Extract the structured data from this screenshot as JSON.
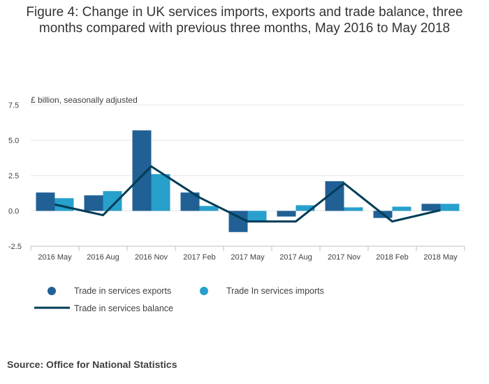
{
  "title_line1": "Figure 4: Change in UK services imports, exports and trade balance, three",
  "title_line2": "months compared with previous three months, May 2016 to May 2018",
  "source": "Source: Office for National Statistics",
  "colors": {
    "exports": "#206095",
    "imports": "#27a0cc",
    "balance": "#003c57",
    "grid": "#e6e6e6",
    "axis": "#bfbfbf",
    "text": "#414042"
  },
  "chart_data": {
    "type": "bar",
    "title": "Figure 4: Change in UK services imports, exports and trade balance, three months compared with previous three months, May 2016 to May 2018",
    "ylabel": "£ billion, seasonally adjusted",
    "xlabel": "",
    "ylim": [
      -2.5,
      7.5
    ],
    "yticks": [
      7.5,
      5.0,
      2.5,
      0.0,
      -2.5
    ],
    "ytick_labels": [
      "7.5",
      "5.0",
      "2.5",
      "0.0",
      "-2.5"
    ],
    "categories": [
      "2016 May",
      "2016 Aug",
      "2016 Nov",
      "2017 Feb",
      "2017 May",
      "2017 Aug",
      "2017 Nov",
      "2018 Feb",
      "2018 May"
    ],
    "series": [
      {
        "name": "Trade in services exports",
        "kind": "bar",
        "values": [
          1.3,
          1.1,
          5.7,
          1.3,
          -1.5,
          -0.4,
          2.1,
          -0.5,
          0.5
        ]
      },
      {
        "name": "Trade In services imports",
        "kind": "bar",
        "values": [
          0.9,
          1.4,
          2.6,
          0.35,
          -0.75,
          0.4,
          0.25,
          0.3,
          0.5
        ]
      },
      {
        "name": "Trade in services balance",
        "kind": "line",
        "values": [
          0.45,
          -0.3,
          3.15,
          0.95,
          -0.75,
          -0.75,
          1.95,
          -0.75,
          0.05
        ]
      }
    ],
    "legend": {
      "position": "bottom-left",
      "entries": [
        "Trade in services exports",
        "Trade In services imports",
        "Trade in services balance"
      ]
    },
    "grid": true
  }
}
